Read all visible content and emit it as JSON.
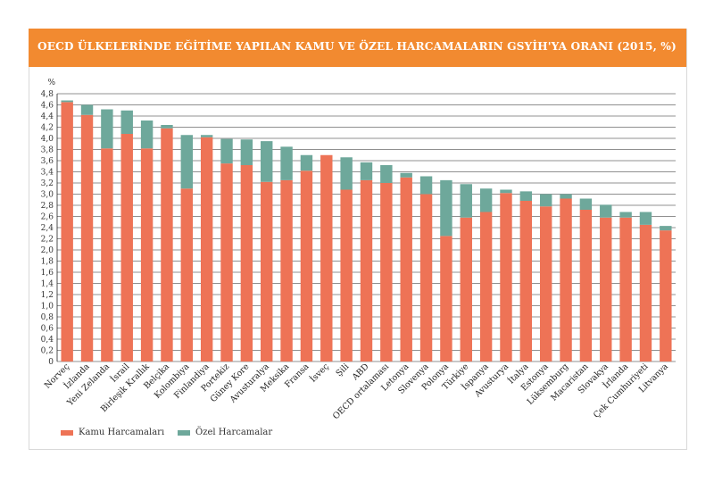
{
  "colors": {
    "header": "#f28a30",
    "public": "#ee7356",
    "private": "#6ea89b",
    "grid": "#222222",
    "axis": "#333333"
  },
  "chart_data": {
    "type": "bar",
    "stacked": true,
    "title": "OECD ÜLKELERİNDE EĞİTİME YAPILAN KAMU VE ÖZEL HARCAMALARIN GSYİH'YA ORANI (2015, %)",
    "ylabel": "%",
    "ylim": [
      0,
      4.8
    ],
    "ytick_step": 0.2,
    "yticks": [
      "0",
      "0,2",
      "0,4",
      "0,6",
      "0,8",
      "1,0",
      "1,2",
      "1,4",
      "1,6",
      "1,8",
      "2,0",
      "2,2",
      "2,4",
      "2,6",
      "2,8",
      "3,0",
      "3,2",
      "3,4",
      "3,6",
      "3,8",
      "4,0",
      "4,2",
      "4,4",
      "4,6",
      "4,8"
    ],
    "categories": [
      "Norveç",
      "İzlanda",
      "Yeni Zelanda",
      "İsrail",
      "Birleşik Krallık",
      "Belçika",
      "Kolombiya",
      "Finlandiya",
      "Portekiz",
      "Güney Kore",
      "Avusturalya",
      "Meksika",
      "Fransa",
      "İsveç",
      "Şili",
      "ABD",
      "OECD ortalaması",
      "Letonya",
      "Slovenya",
      "Polonya",
      "Türkiye",
      "İspanya",
      "Avusturya",
      "İtalya",
      "Estonya",
      "Lüksemburg",
      "Macaristan",
      "Slovakya",
      "İrlanda",
      "Çek Cumhuriyeti",
      "Litvanya"
    ],
    "series": [
      {
        "name": "Kamu Harcamaları",
        "values": [
          4.65,
          4.42,
          3.82,
          4.08,
          3.82,
          4.18,
          3.1,
          4.02,
          3.55,
          3.52,
          3.22,
          3.25,
          3.42,
          3.7,
          3.08,
          3.25,
          3.2,
          3.3,
          3.0,
          2.25,
          2.58,
          2.68,
          3.02,
          2.88,
          2.78,
          2.92,
          2.72,
          2.58,
          2.58,
          2.45,
          2.35
        ]
      },
      {
        "name": "Özel Harcamalar",
        "values": [
          0.03,
          0.18,
          0.7,
          0.42,
          0.5,
          0.06,
          0.96,
          0.04,
          0.44,
          0.46,
          0.73,
          0.6,
          0.28,
          0.0,
          0.58,
          0.32,
          0.32,
          0.08,
          0.32,
          1.0,
          0.6,
          0.42,
          0.06,
          0.17,
          0.22,
          0.08,
          0.2,
          0.23,
          0.1,
          0.23,
          0.08
        ]
      }
    ],
    "legend": [
      "Kamu Harcamaları",
      "Özel Harcamalar"
    ],
    "legend_position": "bottom-left",
    "grid": true
  }
}
